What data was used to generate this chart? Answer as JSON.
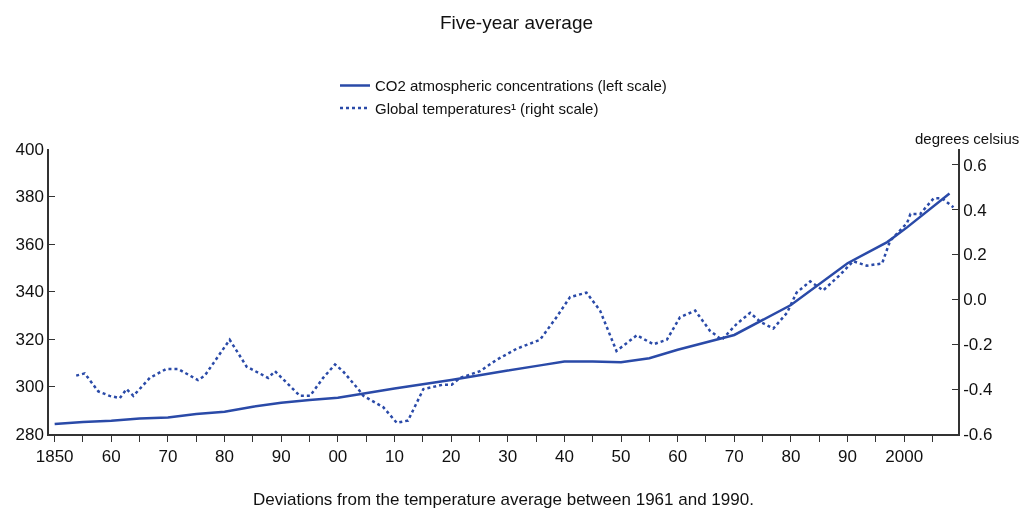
{
  "chart_data": {
    "type": "line",
    "title": "Five-year average",
    "y2label": "degrees celsius",
    "annotations": [
      "Deviations from the temperature average between 1961 and 1990."
    ],
    "legend": "top",
    "xlim": [
      1849,
      2009.5
    ],
    "xticks": [
      {
        "value": 1850,
        "label": "1850"
      },
      {
        "value": 1855,
        "label": null
      },
      {
        "value": 1860,
        "label": "60"
      },
      {
        "value": 1865,
        "label": null
      },
      {
        "value": 1870,
        "label": "70"
      },
      {
        "value": 1875,
        "label": null
      },
      {
        "value": 1880,
        "label": "80"
      },
      {
        "value": 1885,
        "label": null
      },
      {
        "value": 1890,
        "label": "90"
      },
      {
        "value": 1895,
        "label": null
      },
      {
        "value": 1900,
        "label": "00"
      },
      {
        "value": 1905,
        "label": null
      },
      {
        "value": 1910,
        "label": "10"
      },
      {
        "value": 1915,
        "label": null
      },
      {
        "value": 1920,
        "label": "20"
      },
      {
        "value": 1925,
        "label": null
      },
      {
        "value": 1930,
        "label": "30"
      },
      {
        "value": 1935,
        "label": null
      },
      {
        "value": 1940,
        "label": "40"
      },
      {
        "value": 1945,
        "label": null
      },
      {
        "value": 1950,
        "label": "50"
      },
      {
        "value": 1955,
        "label": null
      },
      {
        "value": 1960,
        "label": "60"
      },
      {
        "value": 1965,
        "label": null
      },
      {
        "value": 1970,
        "label": "70"
      },
      {
        "value": 1975,
        "label": null
      },
      {
        "value": 1980,
        "label": "80"
      },
      {
        "value": 1985,
        "label": null
      },
      {
        "value": 1990,
        "label": "90"
      },
      {
        "value": 1995,
        "label": null
      },
      {
        "value": 2000,
        "label": "2000"
      },
      {
        "value": 2005,
        "label": null
      }
    ],
    "ylim": [
      280,
      400
    ],
    "yticks": [
      280,
      300,
      320,
      340,
      360,
      380,
      400
    ],
    "y2lim": [
      -0.6,
      0.67
    ],
    "y2ticks": [
      -0.6,
      -0.4,
      -0.2,
      {
        "value": 0,
        "label": "0.0"
      },
      0.2,
      0.4,
      0.6
    ],
    "series": [
      {
        "name": "CO2 atmospheric concentrations (left scale)",
        "color": "#2a4aa8",
        "line_style": "solid",
        "x": [
          1850,
          1855,
          1860,
          1865,
          1870,
          1875,
          1880,
          1885,
          1890,
          1895,
          1900,
          1903,
          1910,
          1920,
          1930,
          1936,
          1940,
          1945,
          1950,
          1955,
          1960,
          1970,
          1980,
          1990,
          1997,
          2000.5,
          2008
        ],
        "values": [
          284.2,
          285.1,
          285.6,
          286.5,
          287.0,
          288.4,
          289.4,
          291.5,
          293.2,
          294.3,
          295.3,
          296.4,
          299.2,
          302.7,
          306.7,
          309.0,
          310.5,
          310.5,
          310.2,
          311.9,
          315.5,
          321.7,
          334.3,
          351.9,
          360.8,
          367.0,
          381.3
        ]
      },
      {
        "name": "Global temperatures¹ (right scale)",
        "color": "#2a4aa8",
        "line_style": "dotted",
        "axis": "y2",
        "x": [
          1853.8,
          1855.3,
          1857.7,
          1859.7,
          1861.5,
          1862.7,
          1863.9,
          1866.8,
          1869.7,
          1871.8,
          1875.3,
          1876.5,
          1880.9,
          1883.9,
          1887.7,
          1888.9,
          1893.3,
          1895.1,
          1897.4,
          1899.5,
          1900.9,
          1903.6,
          1904.5,
          1908,
          1910.4,
          1912.4,
          1915.1,
          1918.6,
          1920.1,
          1921.6,
          1925.1,
          1928,
          1931.6,
          1935.7,
          1938.6,
          1941,
          1943.9,
          1946.3,
          1949.2,
          1952.8,
          1955.7,
          1958.1,
          1960.4,
          1963.1,
          1965.7,
          1967.8,
          1970.4,
          1972.8,
          1974.6,
          1976.9,
          1979.3,
          1981,
          1983.4,
          1985.7,
          1988.7,
          1991,
          1993.4,
          1996.1,
          1997.5,
          2000.5,
          2001.1,
          2002.8,
          2005.2,
          2006.7,
          2008.7
        ],
        "values": [
          -0.34,
          -0.33,
          -0.41,
          -0.43,
          -0.44,
          -0.4,
          -0.43,
          -0.35,
          -0.31,
          -0.31,
          -0.36,
          -0.34,
          -0.18,
          -0.3,
          -0.35,
          -0.32,
          -0.43,
          -0.43,
          -0.35,
          -0.29,
          -0.32,
          -0.4,
          -0.43,
          -0.48,
          -0.55,
          -0.54,
          -0.4,
          -0.38,
          -0.38,
          -0.35,
          -0.32,
          -0.27,
          -0.22,
          -0.18,
          -0.08,
          0.01,
          0.03,
          -0.05,
          -0.23,
          -0.16,
          -0.2,
          -0.18,
          -0.08,
          -0.05,
          -0.14,
          -0.18,
          -0.11,
          -0.06,
          -0.1,
          -0.13,
          -0.06,
          0.03,
          0.08,
          0.04,
          0.11,
          0.17,
          0.15,
          0.16,
          0.26,
          0.34,
          0.38,
          0.38,
          0.45,
          0.45,
          0.41
        ]
      }
    ]
  }
}
